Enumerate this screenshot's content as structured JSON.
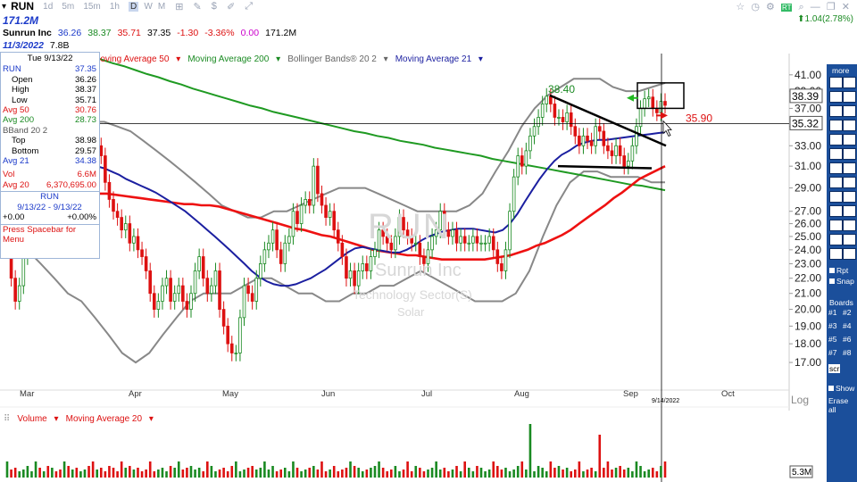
{
  "header": {
    "symbol": "RUN",
    "timeframes": [
      "1d",
      "5m",
      "15m",
      "1h",
      "D",
      "W",
      "M"
    ],
    "selected_timeframe": "D",
    "shares_out": "171.2M",
    "company": "Sunrun Inc",
    "open": "36.26",
    "high": "38.37",
    "low": "35.71",
    "close": "37.35",
    "change": "-1.30",
    "change_pct": "-3.36%",
    "extra": "0.00",
    "volume": "171.2M",
    "earnings_date": "11/3/2022",
    "market_cap": "7.8B",
    "right_change": "1.04(2.78%)"
  },
  "colors": {
    "up": "#1a8a22",
    "down": "#d11",
    "accent": "#1a39c9",
    "toolbar": "#1b4f9b",
    "ma50": "#e11",
    "ma200": "#1f9a22",
    "ma21": "#1b1fa0",
    "bb": "#888888"
  },
  "info_panel": {
    "date": "Tue 9/13/22",
    "symbol": "RUN",
    "price": "37.35",
    "open_label": "Open",
    "open": "36.26",
    "high_label": "High",
    "high": "38.37",
    "low_label": "Low",
    "low": "35.71",
    "avg50_label": "Avg 50",
    "avg50": "30.76",
    "avg200_label": "Avg 200",
    "avg200": "28.73",
    "bband_label": "BBand 20 2",
    "top_label": "Top",
    "top": "38.98",
    "bottom_label": "Bottom",
    "bottom": "29.57",
    "avg21_label": "Avg 21",
    "avg21": "34.38",
    "vol_label": "Vol",
    "vol": "6.6M",
    "avg20_label": "Avg 20",
    "avg20": "6,370,695.00",
    "perf_symbol": "RUN",
    "perf_range": "9/13/22 - 9/13/22",
    "perf_left": "+0.00",
    "perf_right": "+0.00%",
    "hint": "Press Spacebar for Menu"
  },
  "legend": [
    "Moving Average 50",
    "Moving Average 200",
    "Bollinger Bands® 20 2",
    "Moving Average 21"
  ],
  "volume_legend": [
    "Volume",
    "Moving Average 20"
  ],
  "watermark": {
    "symbol": "RUN",
    "name": "Sunrun Inc",
    "sector": "Technology Sector(S)",
    "industry": "Solar"
  },
  "annotations": {
    "high_label": "38.40",
    "target_label": "35.90"
  },
  "toolbar": {
    "more": "more",
    "rpt": "Rpt",
    "snap": "Snap",
    "boards": "Boards",
    "board_buttons": [
      "#1",
      "#2",
      "#3",
      "#4",
      "#5",
      "#6",
      "#7",
      "#8"
    ],
    "show": "Show",
    "erase": "Erase all",
    "scr": "scr"
  },
  "chart_data": {
    "type": "candlestick",
    "yticks": [
      17,
      18,
      19,
      20,
      21,
      22,
      23,
      24,
      25,
      26,
      27,
      29,
      31,
      33,
      35,
      37,
      39,
      41
    ],
    "ylim": [
      16.5,
      42
    ],
    "price_tags": [
      "38.39",
      "35.32"
    ],
    "volume_tag": "5.3M",
    "crosshair_price": 35.32,
    "crosshair_date": "9/14/2022",
    "xlabels": [
      "Mar",
      "Apr",
      "May",
      "Jun",
      "Jul",
      "Aug",
      "Sep",
      "Oct"
    ],
    "log_label": "Log",
    "closes": [
      24.5,
      22,
      20.5,
      21.5,
      23.5,
      27,
      28.5,
      30,
      29,
      31.5,
      30.5,
      32,
      31,
      30,
      33,
      31,
      32.5,
      30.5,
      31.5,
      33,
      32,
      31,
      33,
      32,
      29.5,
      28,
      27,
      26.5,
      25.5,
      26,
      24.5,
      25,
      24,
      23.5,
      22.5,
      21,
      20,
      20.5,
      21.5,
      22,
      20.5,
      21,
      21.5,
      20.5,
      20,
      21,
      22.5,
      23.5,
      22,
      21,
      21.5,
      22.5,
      20,
      19,
      18,
      17.5,
      17.5,
      19.5,
      21.5,
      21,
      20.5,
      22,
      23,
      24,
      24.5,
      25.5,
      24,
      23,
      24.5,
      25,
      27,
      26,
      27.5,
      28,
      27.5,
      31,
      28.5,
      27.5,
      26.5,
      27,
      25.5,
      24.5,
      23.5,
      22,
      22.5,
      21.5,
      22.5,
      23,
      22.5,
      23.5,
      24,
      25.5,
      25,
      24.5,
      24,
      25,
      26.5,
      25.5,
      25,
      24.5,
      24.5,
      23.5,
      23,
      24,
      25,
      25.5,
      27,
      25.5,
      25,
      25.5,
      24.5,
      25,
      24.5,
      24.5,
      25,
      24.5,
      24.5,
      24.5,
      25,
      24,
      23,
      22.5,
      24,
      27,
      30,
      32,
      31,
      32.5,
      34,
      35,
      36,
      37.5,
      38.4,
      37.5,
      36,
      36,
      35.5,
      36.5,
      35,
      34,
      33,
      34,
      33.5,
      33,
      35,
      34.5,
      33,
      32.5,
      32,
      33,
      32,
      31,
      31.5,
      33,
      35,
      37,
      38.1,
      38.3,
      37,
      36.5,
      37.8,
      37.35
    ],
    "ma50": [
      28.5,
      28.5,
      28.4,
      28.3,
      28.2,
      28.1,
      28,
      27.9,
      27.8,
      27.7,
      27.6,
      27.6,
      27.5,
      27.5,
      27.4,
      27.2,
      27,
      26.8,
      26.6,
      26.4,
      26.2,
      26,
      25.8,
      25.6,
      25.5,
      25.3,
      25.1,
      25,
      24.8,
      24.6,
      24.4,
      24.2,
      24,
      23.9,
      23.8,
      23.7,
      23.6,
      23.6,
      23.5,
      23.4,
      23.3,
      23.3,
      23.3,
      23.3,
      23.3,
      23.3,
      23.4,
      23.5,
      23.6,
      23.8,
      24,
      24.3,
      24.5,
      24.8,
      25.1,
      25.5,
      26,
      26.5,
      27,
      27.5,
      28.1,
      28.6,
      29.2,
      29.8,
      30.2,
      30.6,
      31
    ],
    "ma200": [
      43.5,
      43,
      42.5,
      42.1,
      41.6,
      41.1,
      40.7,
      40.2,
      39.8,
      39.3,
      38.9,
      38.5,
      38.1,
      37.7,
      37.3,
      37,
      36.6,
      36.3,
      36,
      35.7,
      35.4,
      35.1,
      34.8,
      34.5,
      34.3,
      34,
      33.8,
      33.5,
      33.3,
      33.1,
      32.8,
      32.6,
      32.4,
      32.2,
      32,
      31.7,
      31.5,
      31.3,
      31.1,
      30.9,
      30.7,
      30.5,
      30.3,
      30.1,
      29.9,
      29.7,
      29.5,
      29.3,
      29.2,
      29,
      28.8
    ],
    "ma21": [
      31,
      31,
      30.8,
      30.5,
      30.2,
      29.8,
      29.5,
      29.2,
      28.9,
      28.6,
      28.2,
      27.8,
      27.4,
      27,
      26.5,
      26,
      25.5,
      25,
      24.5,
      24,
      23.5,
      23,
      22.5,
      22.1,
      21.8,
      21.6,
      21.5,
      21.5,
      21.6,
      21.8,
      22,
      22.3,
      22.6,
      23,
      23.4,
      23.8,
      24.1,
      24.2,
      24.1,
      24,
      23.9,
      23.8,
      23.8,
      24,
      24.3,
      24.7,
      25,
      25.2,
      25.4,
      25.5,
      25.6,
      25.6,
      25.6,
      25.5,
      25.4,
      25.3,
      25.5,
      26,
      26.8,
      27.8,
      28.8,
      29.8,
      30.7,
      31.5,
      32.1,
      32.5,
      33,
      33.3,
      33.5,
      33.6,
      33.6,
      33.7,
      33.8,
      33.9,
      34,
      34.1,
      34.2,
      34.3,
      34.4
    ],
    "bb_upper": [
      36,
      36,
      35.5,
      35,
      34.5,
      34.5,
      35,
      35.5,
      35.5,
      35,
      34.5,
      33.5,
      32.5,
      31.5,
      30.5,
      29.5,
      28.5,
      27.5,
      27,
      26.5,
      26.5,
      27,
      27,
      27.5,
      28,
      28.5,
      29,
      29,
      29,
      28.5,
      28,
      27.5,
      27,
      27,
      27,
      27,
      27.5,
      28.5,
      30.5,
      32.5,
      35,
      37,
      38.5,
      39.5,
      40.5,
      40.5,
      40.5,
      39.5,
      39,
      39,
      39.5,
      40
    ],
    "bb_lower": [
      26,
      25,
      24,
      23,
      22,
      21,
      20.5,
      19.5,
      18.5,
      17.5,
      17,
      17.5,
      18.5,
      19.5,
      20.5,
      21,
      21,
      21,
      21.5,
      22,
      22,
      21.5,
      21,
      21,
      20.5,
      20.5,
      21,
      21,
      21.5,
      21.5,
      22,
      22.5,
      22,
      21.5,
      21,
      20.5,
      20.5,
      20.5,
      21,
      22.5,
      25,
      27.5,
      29.5,
      30.5,
      30.5,
      30,
      30,
      30,
      29.5,
      29.5
    ]
  }
}
